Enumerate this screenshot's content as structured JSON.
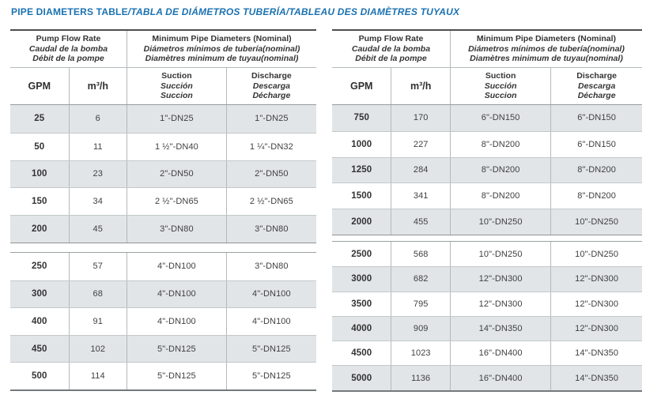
{
  "page": {
    "title_main": "PIPE DIAMETERS TABLE",
    "title_rest": "/TABLA DE DIÁMETROS TUBERÍA/TABLEAU DES DIAMÈTRES TUYAUX"
  },
  "colors": {
    "accent_blue": "#1b72b1",
    "row_shade": "#e1e5e8",
    "text": "#3b3b3b"
  },
  "header": {
    "flow_group": {
      "en": "Pump Flow Rate",
      "es": "Caudal de la bomba",
      "fr": "Débit de la pompe"
    },
    "pipe_group": {
      "en": "Minimum Pipe Diameters (Nominal)",
      "es": "Diámetros mínimos de tubería(nominal)",
      "fr": "Diamètres minimum de tuyau(nominal)"
    },
    "gpm": "GPM",
    "m3h": "m³/h",
    "suction": {
      "en": "Suction",
      "es": "Succión",
      "fr": "Succion"
    },
    "discharge": {
      "en": "Discharge",
      "es": "Descarga",
      "fr": "Décharge"
    }
  },
  "tables": [
    {
      "sections": [
        {
          "rows": [
            {
              "gpm": "25",
              "m3h": "6",
              "suction": "1\"-DN25",
              "discharge": "1\"-DN25"
            },
            {
              "gpm": "50",
              "m3h": "11",
              "suction": "1 ½\"-DN40",
              "discharge": "1 ¼\"-DN32"
            },
            {
              "gpm": "100",
              "m3h": "23",
              "suction": "2\"-DN50",
              "discharge": "2\"-DN50"
            },
            {
              "gpm": "150",
              "m3h": "34",
              "suction": "2 ½\"-DN65",
              "discharge": "2 ½\"-DN65"
            },
            {
              "gpm": "200",
              "m3h": "45",
              "suction": "3\"-DN80",
              "discharge": "3\"-DN80"
            }
          ]
        },
        {
          "rows": [
            {
              "gpm": "250",
              "m3h": "57",
              "suction": "4\"-DN100",
              "discharge": "3\"-DN80"
            },
            {
              "gpm": "300",
              "m3h": "68",
              "suction": "4\"-DN100",
              "discharge": "4\"-DN100"
            },
            {
              "gpm": "400",
              "m3h": "91",
              "suction": "4\"-DN100",
              "discharge": "4\"-DN100"
            },
            {
              "gpm": "450",
              "m3h": "102",
              "suction": "5\"-DN125",
              "discharge": "5\"-DN125"
            },
            {
              "gpm": "500",
              "m3h": "114",
              "suction": "5\"-DN125",
              "discharge": "5\"-DN125"
            }
          ]
        }
      ]
    },
    {
      "sections": [
        {
          "rows": [
            {
              "gpm": "750",
              "m3h": "170",
              "suction": "6\"-DN150",
              "discharge": "6\"-DN150"
            },
            {
              "gpm": "1000",
              "m3h": "227",
              "suction": "8\"-DN200",
              "discharge": "6\"-DN150"
            },
            {
              "gpm": "1250",
              "m3h": "284",
              "suction": "8\"-DN200",
              "discharge": "8\"-DN200"
            },
            {
              "gpm": "1500",
              "m3h": "341",
              "suction": "8\"-DN200",
              "discharge": "8\"-DN200"
            },
            {
              "gpm": "2000",
              "m3h": "455",
              "suction": "10\"-DN250",
              "discharge": "10\"-DN250"
            }
          ]
        },
        {
          "rows": [
            {
              "gpm": "2500",
              "m3h": "568",
              "suction": "10\"-DN250",
              "discharge": "10\"-DN250"
            },
            {
              "gpm": "3000",
              "m3h": "682",
              "suction": "12\"-DN300",
              "discharge": "12\"-DN300"
            },
            {
              "gpm": "3500",
              "m3h": "795",
              "suction": "12\"-DN300",
              "discharge": "12\"-DN300"
            },
            {
              "gpm": "4000",
              "m3h": "909",
              "suction": "14\"-DN350",
              "discharge": "12\"-DN300"
            },
            {
              "gpm": "4500",
              "m3h": "1023",
              "suction": "16\"-DN400",
              "discharge": "14\"-DN350"
            },
            {
              "gpm": "5000",
              "m3h": "1136",
              "suction": "16\"-DN400",
              "discharge": "14\"-DN350"
            }
          ]
        }
      ]
    }
  ]
}
